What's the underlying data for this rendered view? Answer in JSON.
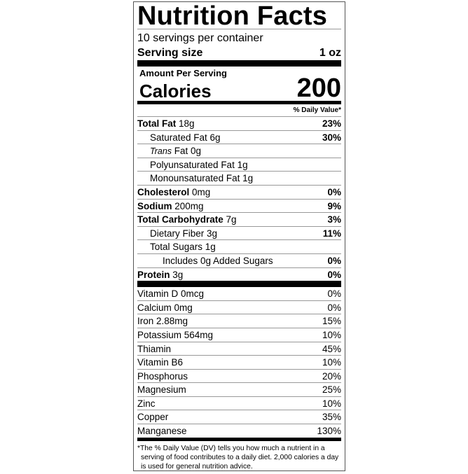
{
  "title": "Nutrition Facts",
  "servings": "10 servings per container",
  "serving_size": {
    "label": "Serving size",
    "value": "1 oz"
  },
  "amount_per_serving": "Amount Per Serving",
  "calories": {
    "label": "Calories",
    "value": "200"
  },
  "dv_header": "% Daily Value*",
  "nutrients": [
    {
      "name": "Total Fat",
      "amount": " 18g",
      "dv": "23%",
      "bold": true,
      "indent": 0
    },
    {
      "name": "Saturated Fat 6g",
      "amount": "",
      "dv": "30%",
      "bold": false,
      "indent": 1
    },
    {
      "name": "Trans",
      "amount": " Fat 0g",
      "dv": "",
      "bold": false,
      "indent": 1,
      "italic": true
    },
    {
      "name": "Polyunsaturated Fat 1g",
      "amount": "",
      "dv": "",
      "bold": false,
      "indent": 1
    },
    {
      "name": "Monounsaturated Fat 1g",
      "amount": "",
      "dv": "",
      "bold": false,
      "indent": 1
    },
    {
      "name": "Cholesterol",
      "amount": " 0mg",
      "dv": "0%",
      "bold": true,
      "indent": 0
    },
    {
      "name": "Sodium",
      "amount": " 200mg",
      "dv": "9%",
      "bold": true,
      "indent": 0
    },
    {
      "name": "Total Carbohydrate",
      "amount": " 7g",
      "dv": "3%",
      "bold": true,
      "indent": 0
    },
    {
      "name": "Dietary Fiber 3g",
      "amount": "",
      "dv": "11%",
      "bold": false,
      "indent": 1
    },
    {
      "name": "Total Sugars 1g",
      "amount": "",
      "dv": "",
      "bold": false,
      "indent": 1
    },
    {
      "name": "Includes 0g Added Sugars",
      "amount": "",
      "dv": "0%",
      "bold": false,
      "indent": 2
    },
    {
      "name": "Protein",
      "amount": " 3g",
      "dv": "0%",
      "bold": true,
      "indent": 0
    }
  ],
  "vitamins": [
    {
      "name": "Vitamin D 0mcg",
      "dv": "0%"
    },
    {
      "name": "Calcium 0mg",
      "dv": "0%"
    },
    {
      "name": "Iron 2.88mg",
      "dv": "15%"
    },
    {
      "name": "Potassium 564mg",
      "dv": "10%"
    },
    {
      "name": "Thiamin",
      "dv": "45%"
    },
    {
      "name": "Vitamin B6",
      "dv": "10%"
    },
    {
      "name": "Phosphorus",
      "dv": "20%"
    },
    {
      "name": "Magnesium",
      "dv": "25%"
    },
    {
      "name": "Zinc",
      "dv": "10%"
    },
    {
      "name": "Copper",
      "dv": "35%"
    },
    {
      "name": "Manganese",
      "dv": "130%"
    }
  ],
  "footnote": "*The % Daily Value (DV) tells you how much a nutrient in a serving of food contributes to a daily diet. 2,000 calories a day is used for general nutrition advice."
}
